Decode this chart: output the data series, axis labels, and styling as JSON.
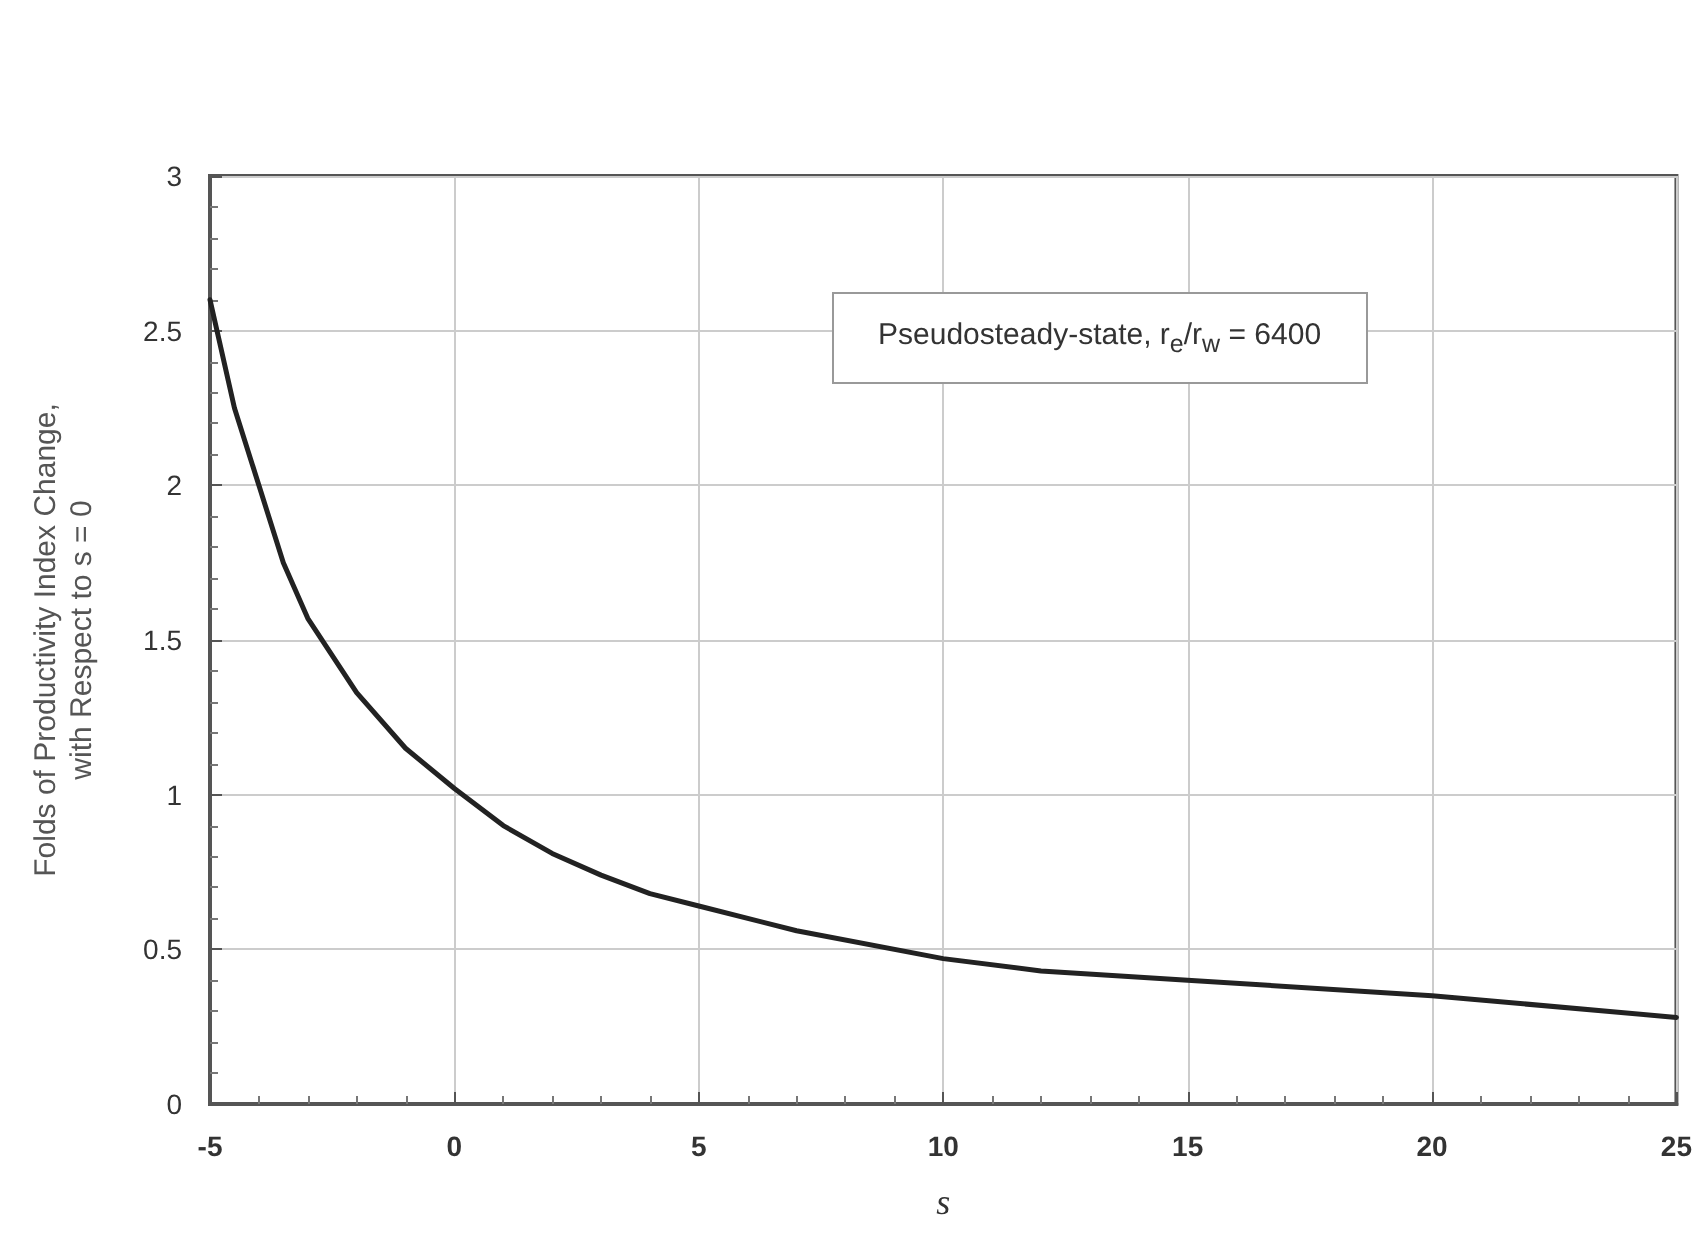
{
  "chart_data": {
    "type": "line",
    "xlabel": "s",
    "ylabel": "Folds of Productivity Index Change,\nwith Respect to s = 0",
    "annotations": [
      "Pseudosteady-state, r$_{e}$/r$_{w}$ = 6400"
    ],
    "x": [
      -5,
      -4.5,
      -4,
      -3.5,
      -3,
      -2,
      -1,
      0,
      1,
      2,
      3,
      4,
      5,
      7,
      10,
      12,
      15,
      20,
      25
    ],
    "series": [
      {
        "color": "#222222",
        "values": [
          2.6,
          2.25,
          2.0,
          1.75,
          1.57,
          1.33,
          1.15,
          1.02,
          0.9,
          0.81,
          0.74,
          0.68,
          0.64,
          0.56,
          0.47,
          0.43,
          0.4,
          0.35,
          0.28
        ]
      }
    ],
    "xlim": [
      -5,
      25
    ],
    "xticks": [
      -5,
      0,
      5,
      10,
      15,
      20,
      25
    ],
    "ylim": [
      0,
      3
    ],
    "yticks": [
      0,
      0.5,
      1,
      1.5,
      2,
      2.5,
      3
    ],
    "grid": true,
    "marker": "none",
    "line_style": "solid"
  }
}
